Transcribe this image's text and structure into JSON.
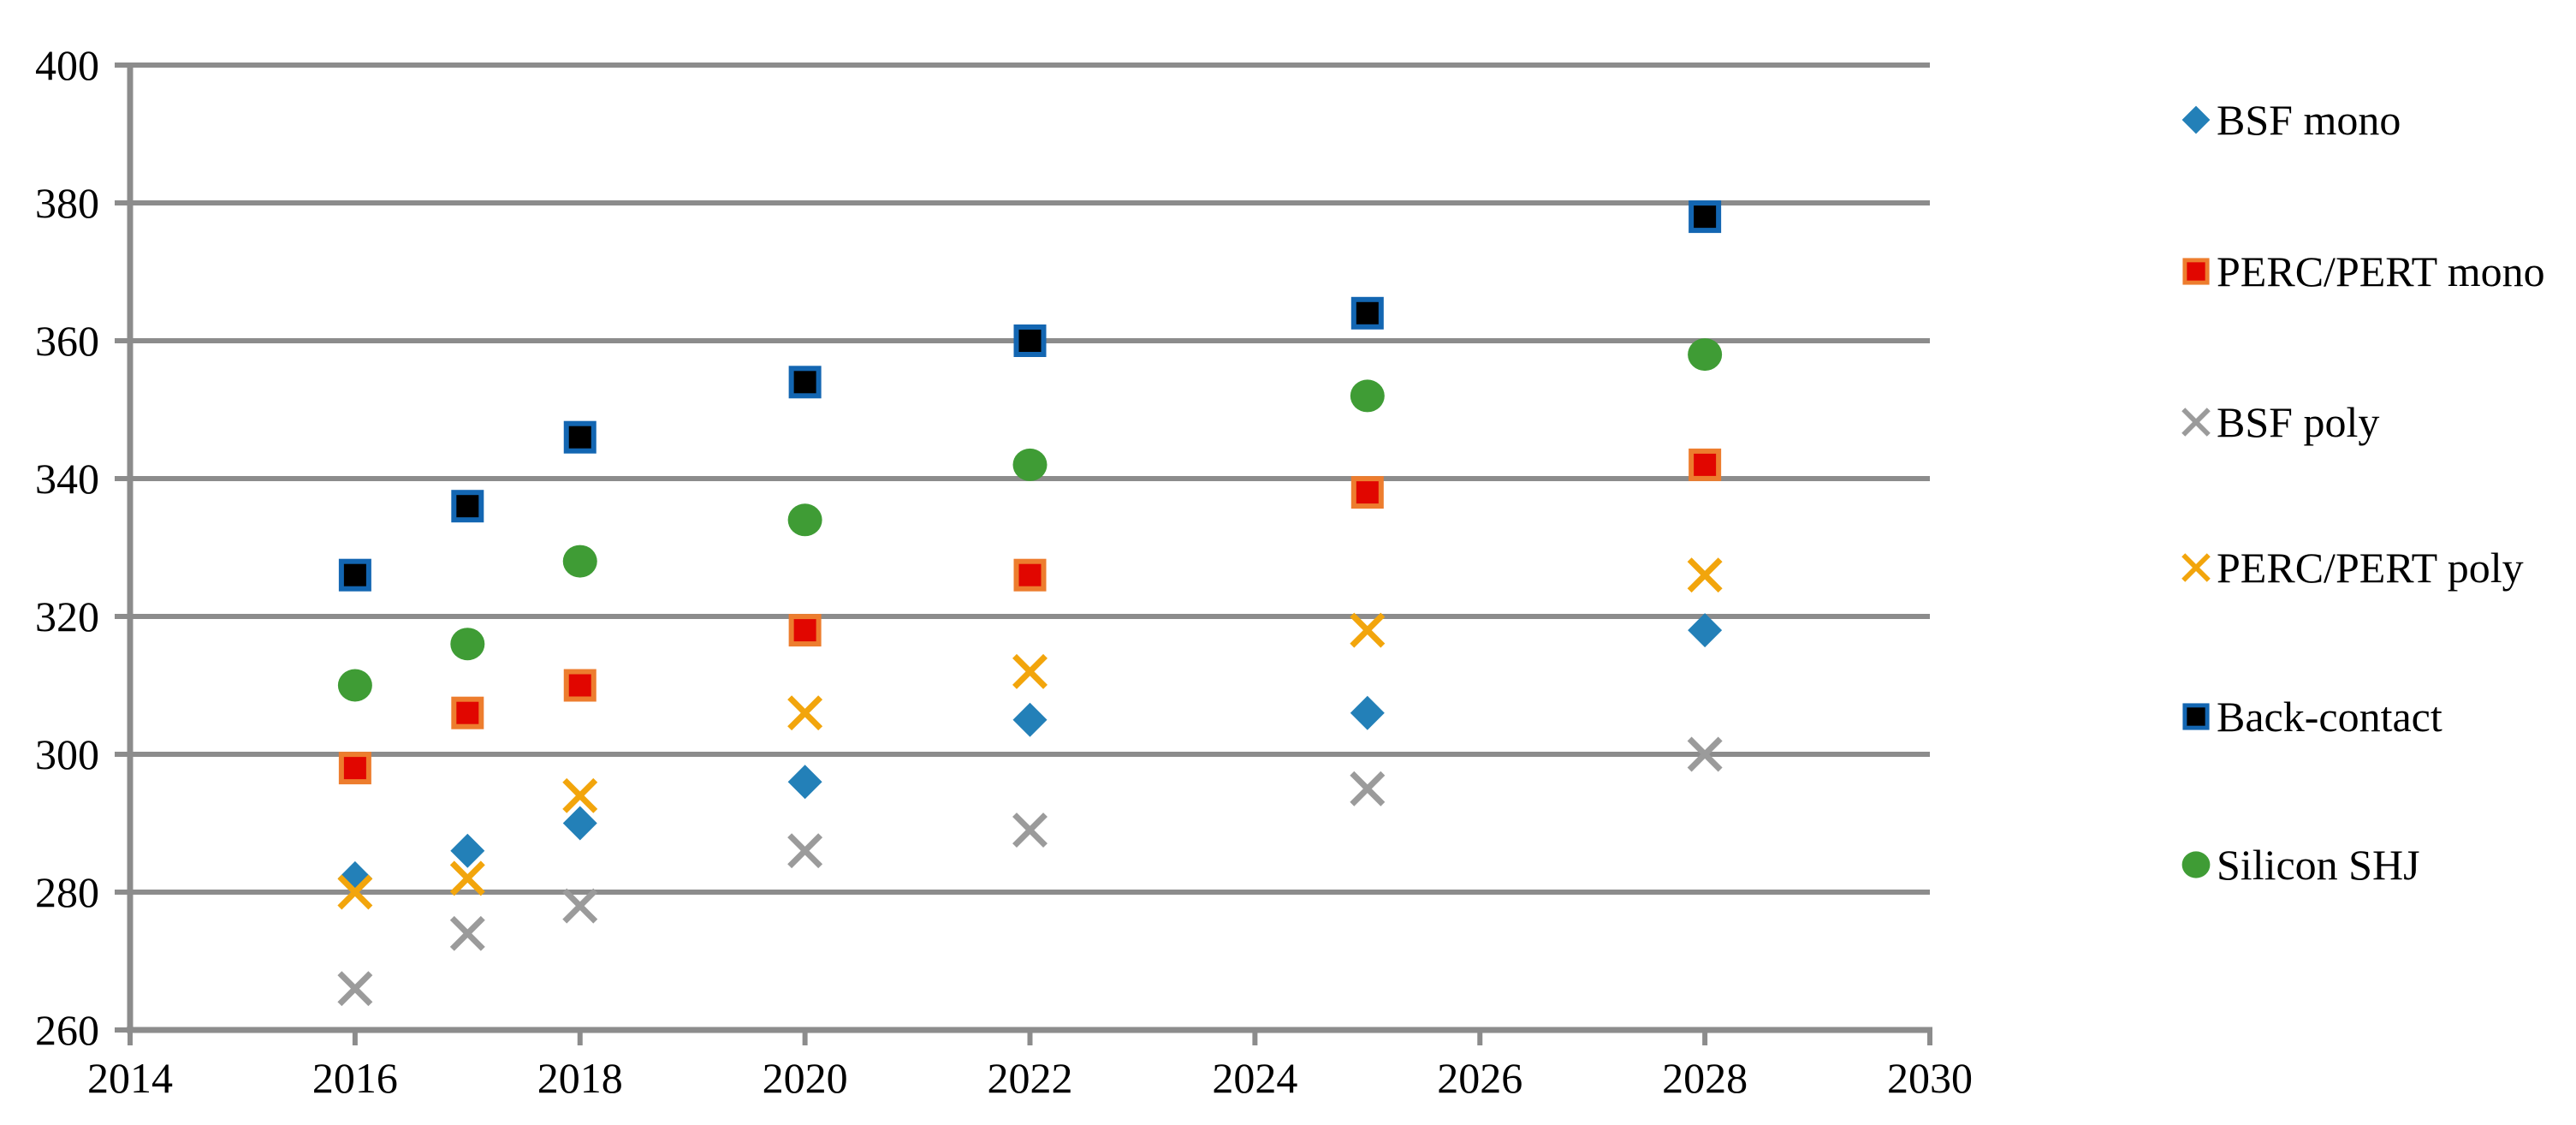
{
  "chart_data": {
    "type": "scatter",
    "title": "",
    "xlabel": "",
    "ylabel": "",
    "x": [
      2016,
      2017,
      2018,
      2020,
      2022,
      2025,
      2028
    ],
    "series": [
      {
        "name": "BSF mono",
        "marker": "diamond",
        "color": "#2380B8",
        "values": [
          282,
          286,
          290,
          296,
          305,
          306,
          318
        ]
      },
      {
        "name": "PERC/PERT mono",
        "marker": "square",
        "color": "#E10600",
        "border_color": "#ED7D2E",
        "values": [
          298,
          306,
          310,
          318,
          326,
          338,
          342
        ]
      },
      {
        "name": "BSF poly",
        "marker": "x",
        "color": "#9B9B9B",
        "values": [
          266,
          274,
          278,
          286,
          289,
          295,
          300
        ]
      },
      {
        "name": "PERC/PERT poly",
        "marker": "x",
        "color": "#F2A50C",
        "values": [
          280,
          282,
          294,
          306,
          312,
          318,
          326
        ]
      },
      {
        "name": "Back-contact",
        "marker": "square",
        "color": "#000000",
        "border_color": "#1366B2",
        "values": [
          326,
          336,
          346,
          354,
          360,
          364,
          378
        ]
      },
      {
        "name": "Silicon SHJ",
        "marker": "circle",
        "color": "#3F9C35",
        "values": [
          310,
          316,
          328,
          334,
          342,
          352,
          358
        ]
      }
    ],
    "xlim": [
      2014,
      2030
    ],
    "ylim": [
      260,
      400
    ],
    "x_ticks": [
      2014,
      2016,
      2018,
      2020,
      2022,
      2024,
      2026,
      2028,
      2030
    ],
    "y_ticks": [
      260,
      280,
      300,
      320,
      340,
      360,
      380,
      400
    ],
    "grid": "horizontal-only",
    "legend_position": "right",
    "axis_color": "#8C8C8C",
    "text_color": "#000000",
    "background_color": "#FFFFFF"
  }
}
